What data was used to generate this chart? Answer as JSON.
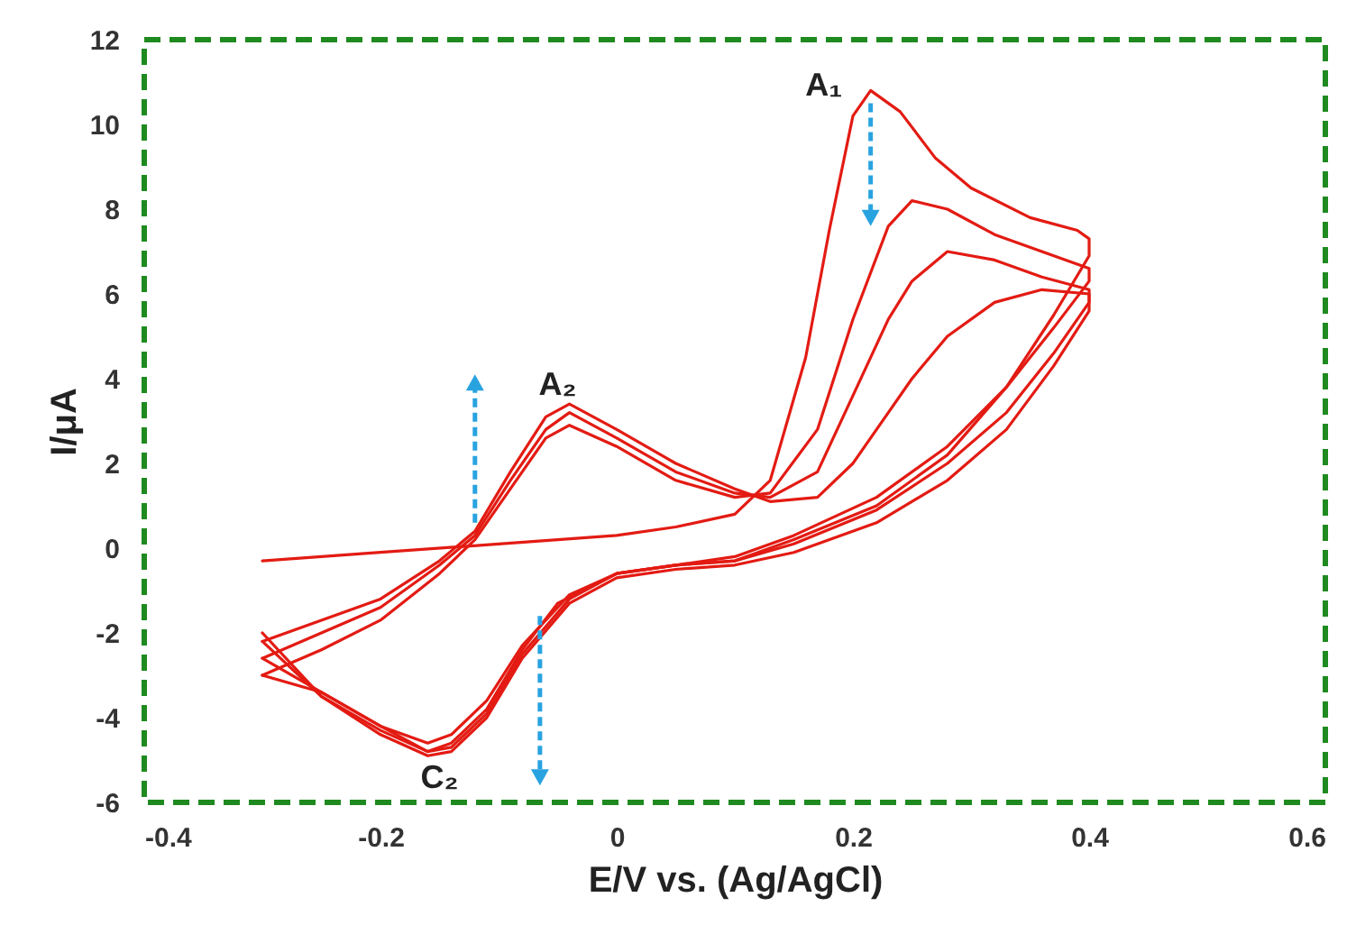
{
  "chart_data": {
    "type": "line",
    "xlabel": "E/V vs. (Ag/AgCl)",
    "ylabel": "I/μA",
    "xlim": [
      -0.4,
      0.6
    ],
    "xticks": [
      -0.4,
      -0.2,
      0,
      0.2,
      0.4,
      0.6
    ],
    "ylim": [
      -6,
      12
    ],
    "yticks": [
      -6,
      -4,
      -2,
      0,
      2,
      4,
      6,
      8,
      10,
      12
    ],
    "line_style": "solid",
    "series": [
      {
        "color": "#e31b13",
        "x": [
          -0.3,
          -0.2,
          -0.1,
          0,
          0.05,
          0.1,
          0.13,
          0.16,
          0.18,
          0.2,
          0.215,
          0.24,
          0.27,
          0.3,
          0.35,
          0.39,
          0.4,
          0.4,
          0.37,
          0.33,
          0.28,
          0.22,
          0.15,
          0.1,
          0.05,
          0,
          -0.05,
          -0.08,
          -0.11,
          -0.14,
          -0.16,
          -0.2,
          -0.25,
          -0.3
        ],
        "values": [
          -0.3,
          -0.1,
          0.1,
          0.3,
          0.5,
          0.8,
          1.6,
          4.5,
          7.5,
          10.2,
          10.8,
          10.3,
          9.2,
          8.5,
          7.8,
          7.5,
          7.3,
          6.9,
          5.5,
          3.8,
          2.2,
          1.0,
          0.2,
          -0.3,
          -0.4,
          -0.6,
          -1.3,
          -2.4,
          -3.8,
          -4.6,
          -4.8,
          -4.2,
          -3.4,
          -3
        ]
      },
      {
        "color": "#e31b13",
        "x": [
          -0.3,
          -0.25,
          -0.2,
          -0.15,
          -0.12,
          -0.09,
          -0.06,
          -0.04,
          0,
          0.05,
          0.1,
          0.13,
          0.17,
          0.2,
          0.23,
          0.25,
          0.28,
          0.32,
          0.36,
          0.4,
          0.4,
          0.37,
          0.33,
          0.28,
          0.22,
          0.15,
          0.1,
          0.05,
          0,
          -0.04,
          -0.08,
          -0.11,
          -0.14,
          -0.16,
          -0.2,
          -0.25,
          -0.3
        ],
        "values": [
          -3,
          -2.4,
          -1.7,
          -0.6,
          0.2,
          1.4,
          2.6,
          2.9,
          2.4,
          1.6,
          1.2,
          1.3,
          2.8,
          5.4,
          7.6,
          8.2,
          8,
          7.4,
          7,
          6.6,
          6.3,
          5.2,
          3.8,
          2.4,
          1.2,
          0.3,
          -0.2,
          -0.4,
          -0.6,
          -1.1,
          -2.3,
          -3.6,
          -4.4,
          -4.6,
          -4.2,
          -3.4,
          -2.6
        ]
      },
      {
        "color": "#e31b13",
        "x": [
          -0.3,
          -0.25,
          -0.2,
          -0.15,
          -0.12,
          -0.09,
          -0.06,
          -0.04,
          0,
          0.05,
          0.1,
          0.13,
          0.17,
          0.2,
          0.23,
          0.25,
          0.28,
          0.32,
          0.36,
          0.4,
          0.4,
          0.37,
          0.33,
          0.28,
          0.22,
          0.15,
          0.1,
          0.05,
          0,
          -0.04,
          -0.08,
          -0.11,
          -0.14,
          -0.16,
          -0.2,
          -0.25,
          -0.3
        ],
        "values": [
          -2.6,
          -2.0,
          -1.4,
          -0.4,
          0.3,
          1.6,
          2.8,
          3.2,
          2.6,
          1.8,
          1.3,
          1.2,
          1.8,
          3.6,
          5.4,
          6.3,
          7.0,
          6.8,
          6.4,
          6.1,
          5.8,
          4.6,
          3.2,
          2.0,
          0.9,
          0.1,
          -0.3,
          -0.4,
          -0.6,
          -1.2,
          -2.5,
          -3.9,
          -4.7,
          -4.8,
          -4.3,
          -3.5,
          -2.2
        ]
      },
      {
        "color": "#e31b13",
        "x": [
          -0.3,
          -0.25,
          -0.2,
          -0.15,
          -0.12,
          -0.09,
          -0.06,
          -0.04,
          0,
          0.05,
          0.1,
          0.13,
          0.17,
          0.2,
          0.23,
          0.25,
          0.28,
          0.32,
          0.36,
          0.4,
          0.4,
          0.37,
          0.33,
          0.28,
          0.22,
          0.15,
          0.1,
          0.05,
          0,
          -0.04,
          -0.08,
          -0.11,
          -0.14,
          -0.16,
          -0.2,
          -0.25,
          -0.3
        ],
        "values": [
          -2.2,
          -1.7,
          -1.2,
          -0.3,
          0.4,
          1.8,
          3.1,
          3.4,
          2.8,
          2.0,
          1.4,
          1.1,
          1.2,
          2.0,
          3.2,
          4.0,
          5.0,
          5.8,
          6.1,
          6.0,
          5.6,
          4.3,
          2.8,
          1.6,
          0.6,
          -0.1,
          -0.4,
          -0.5,
          -0.7,
          -1.3,
          -2.6,
          -4.0,
          -4.8,
          -4.9,
          -4.4,
          -3.5,
          -2.0
        ]
      }
    ],
    "annotations": [
      {
        "text": "A₁",
        "x": 0.215,
        "y": 10.8
      },
      {
        "text": "A₂",
        "x": -0.05,
        "y": 3.4
      },
      {
        "text": "C₂",
        "x": -0.15,
        "y": -4.8
      }
    ]
  }
}
